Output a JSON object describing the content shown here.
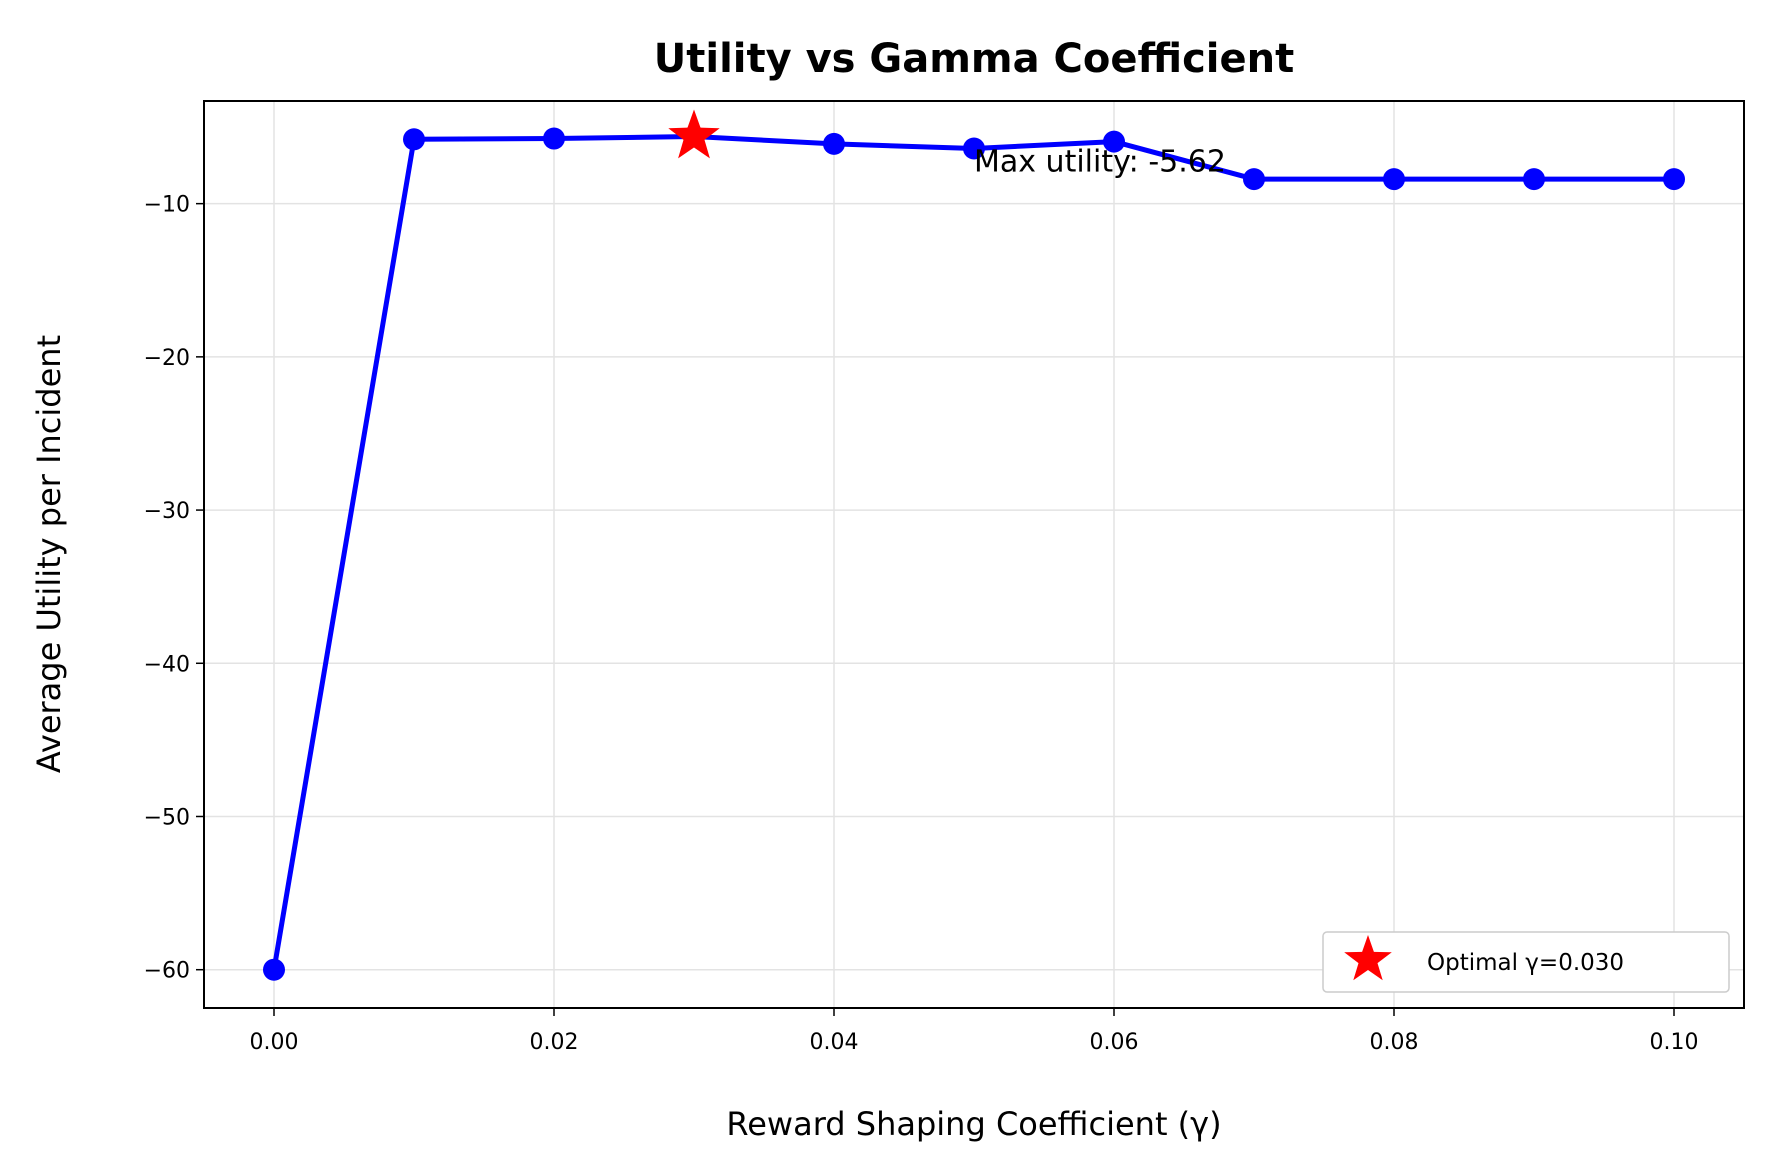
{
  "chart_data": {
    "type": "line",
    "title": "Utility vs Gamma Coefficient",
    "xlabel": "Reward Shaping Coefficient (γ)",
    "ylabel": "Average Utility per Incident",
    "xlim": [
      -0.005,
      0.105
    ],
    "ylim": [
      -62.5,
      -3.3
    ],
    "x_ticks": [
      0.0,
      0.02,
      0.04,
      0.06,
      0.08,
      0.1
    ],
    "x_tick_labels": [
      "0.00",
      "0.02",
      "0.04",
      "0.06",
      "0.08",
      "0.10"
    ],
    "y_ticks": [
      -10,
      -20,
      -30,
      -40,
      -50,
      -60
    ],
    "y_tick_labels": [
      "−10",
      "−20",
      "−30",
      "−40",
      "−50",
      "−60"
    ],
    "grid": true,
    "series": [
      {
        "color": "#0000ff",
        "x": [
          0.0,
          0.01,
          0.02,
          0.03,
          0.04,
          0.05,
          0.06,
          0.07,
          0.08,
          0.09,
          0.1
        ],
        "y": [
          -60.0,
          -5.8,
          -5.75,
          -5.62,
          -6.1,
          -6.4,
          -5.95,
          -8.4,
          -8.4,
          -8.4,
          -8.4
        ]
      }
    ],
    "optimal": {
      "x": 0.03,
      "y": -5.62,
      "color": "#ff0000",
      "marker": "star"
    },
    "annotation": {
      "text": "Max utility: -5.62",
      "x": 0.05,
      "y": -5.62
    },
    "legend": {
      "position": "lower-right",
      "entries": [
        {
          "label": "Optimal γ=0.030",
          "marker": "star",
          "color": "#ff0000"
        }
      ]
    }
  }
}
